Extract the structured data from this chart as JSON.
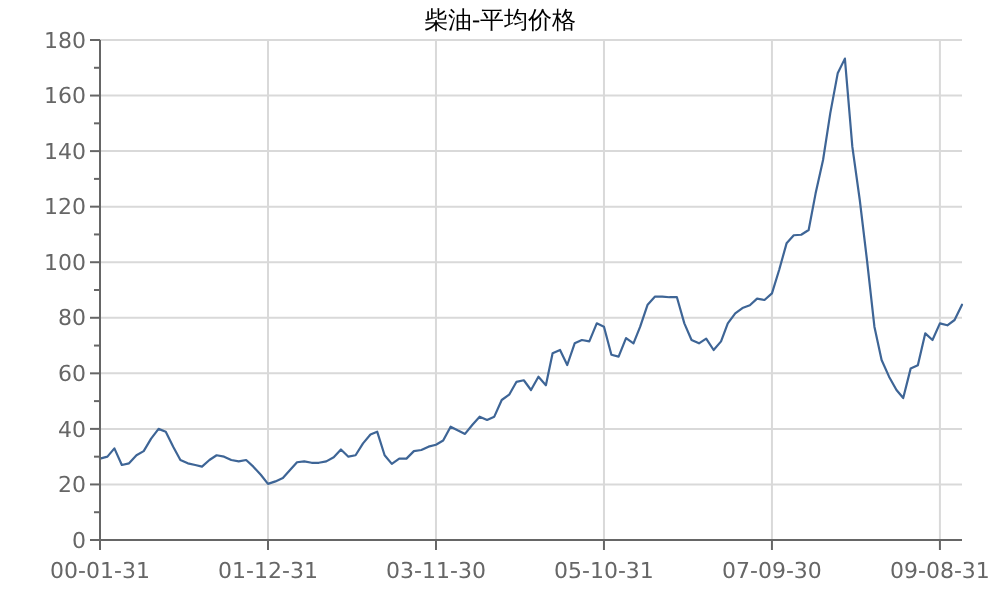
{
  "chart_data": {
    "type": "line",
    "title": "柴油-平均价格",
    "x": [
      "2000-01",
      "2000-02",
      "2000-03",
      "2000-04",
      "2000-05",
      "2000-06",
      "2000-07",
      "2000-08",
      "2000-09",
      "2000-10",
      "2000-11",
      "2000-12",
      "2001-01",
      "2001-02",
      "2001-03",
      "2001-04",
      "2001-05",
      "2001-06",
      "2001-07",
      "2001-08",
      "2001-09",
      "2001-10",
      "2001-11",
      "2001-12",
      "2002-01",
      "2002-02",
      "2002-03",
      "2002-04",
      "2002-05",
      "2002-06",
      "2002-07",
      "2002-08",
      "2002-09",
      "2002-10",
      "2002-11",
      "2002-12",
      "2003-01",
      "2003-02",
      "2003-03",
      "2003-04",
      "2003-05",
      "2003-06",
      "2003-07",
      "2003-08",
      "2003-09",
      "2003-10",
      "2003-11",
      "2003-12",
      "2004-01",
      "2004-02",
      "2004-03",
      "2004-04",
      "2004-05",
      "2004-06",
      "2004-07",
      "2004-08",
      "2004-09",
      "2004-10",
      "2004-11",
      "2004-12",
      "2005-01",
      "2005-02",
      "2005-03",
      "2005-04",
      "2005-05",
      "2005-06",
      "2005-07",
      "2005-08",
      "2005-09",
      "2005-10",
      "2005-11",
      "2005-12",
      "2006-01",
      "2006-02",
      "2006-03",
      "2006-04",
      "2006-05",
      "2006-06",
      "2006-07",
      "2006-08",
      "2006-09",
      "2006-10",
      "2006-11",
      "2006-12",
      "2007-01",
      "2007-02",
      "2007-03",
      "2007-04",
      "2007-05",
      "2007-06",
      "2007-07",
      "2007-08",
      "2007-09",
      "2007-10",
      "2007-11",
      "2007-12",
      "2008-01",
      "2008-02",
      "2008-03",
      "2008-04",
      "2008-05",
      "2008-06",
      "2008-07",
      "2008-08",
      "2008-09",
      "2008-10",
      "2008-11",
      "2008-12",
      "2009-01",
      "2009-02",
      "2009-03",
      "2009-04",
      "2009-05",
      "2009-06",
      "2009-07",
      "2009-08",
      "2009-09",
      "2009-10",
      "2009-11"
    ],
    "series": [
      {
        "color": "#3e6596",
        "values": [
          29.3,
          30,
          33,
          27,
          27.6,
          30.5,
          32,
          36.5,
          40,
          39,
          33.6,
          28.8,
          27.6,
          27,
          26.4,
          28.8,
          30.5,
          30,
          28.8,
          28.3,
          28.8,
          26.4,
          23.5,
          20.2,
          21.1,
          22.3,
          25,
          28,
          28.3,
          27.8,
          27.8,
          28.3,
          29.8,
          32.6,
          30,
          30.5,
          34.8,
          38,
          39,
          30.5,
          27.4,
          29.3,
          29.3,
          32,
          32.4,
          33.6,
          34.3,
          35.8,
          40.8,
          39.4,
          38.2,
          41.5,
          44.4,
          43.2,
          44.4,
          50.4,
          52.3,
          56.9,
          57.5,
          54,
          58.8,
          55.7,
          67.2,
          68.4,
          63,
          70.8,
          72,
          71.5,
          78,
          76.8,
          66.7,
          66,
          72.7,
          70.8,
          76.8,
          84.7,
          87.6,
          87.6,
          87.4,
          87.4,
          78,
          72,
          70.8,
          72.5,
          68.4,
          71.5,
          78,
          81.6,
          83.5,
          84.5,
          86.9,
          86.4,
          88.8,
          97.2,
          106.8,
          109.7,
          109.9,
          111.6,
          124.8,
          136.8,
          153.6,
          168,
          173.3,
          141.6,
          122.4,
          100.8,
          76.8,
          64.8,
          58.8,
          54,
          51.1,
          61.7,
          62.9,
          74.4,
          72,
          78,
          77.3,
          79.2,
          84.7
        ]
      }
    ],
    "xlim": [
      "2000-01",
      "2009-11"
    ],
    "xticks": [
      {
        "value": "2000-01",
        "label": "00-01-31"
      },
      {
        "value": "2001-12",
        "label": "01-12-31"
      },
      {
        "value": "2003-11",
        "label": "03-11-30"
      },
      {
        "value": "2005-10",
        "label": "05-10-31"
      },
      {
        "value": "2007-09",
        "label": "07-09-30"
      },
      {
        "value": "2009-08",
        "label": "09-08-31"
      }
    ],
    "ylim": [
      0,
      180
    ],
    "yticks": [
      0,
      {
        "value": 10,
        "label": null
      },
      20,
      {
        "value": 30,
        "label": null
      },
      40,
      {
        "value": 50,
        "label": null
      },
      60,
      {
        "value": 70,
        "label": null
      },
      80,
      {
        "value": 90,
        "label": null
      },
      100,
      {
        "value": 110,
        "label": null
      },
      120,
      {
        "value": 130,
        "label": null
      },
      140,
      {
        "value": 150,
        "label": null
      },
      160,
      {
        "value": 170,
        "label": null
      },
      180
    ],
    "grid": true,
    "marker": "none",
    "line_style": "solid"
  }
}
